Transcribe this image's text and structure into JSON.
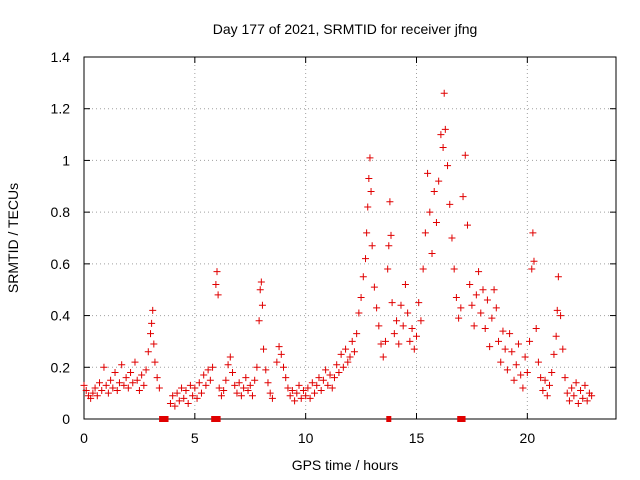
{
  "chart_data": {
    "type": "scatter",
    "title": "Day 177 of 2021, SRMTID for receiver jfng",
    "xlabel": "GPS time / hours",
    "ylabel": "SRMTID / TECUs",
    "xlim": [
      0,
      24
    ],
    "ylim": [
      0,
      1.4
    ],
    "xticks": [
      0,
      5,
      10,
      15,
      20
    ],
    "xtick_labels": [
      "0",
      "5",
      "10",
      "15",
      "20"
    ],
    "yticks": [
      0,
      0.2,
      0.4,
      0.6,
      0.8,
      1,
      1.2,
      1.4
    ],
    "ytick_labels": [
      "0",
      "0.2",
      "0.4",
      "0.6",
      "0.8",
      "1",
      "1.2",
      "1.4"
    ],
    "grid": true,
    "marker": "+",
    "series_color": "#e00000",
    "series": [
      {
        "name": "SRMTID",
        "points": [
          [
            0.0,
            0.13
          ],
          [
            0.1,
            0.11
          ],
          [
            0.2,
            0.09
          ],
          [
            0.3,
            0.08
          ],
          [
            0.4,
            0.1
          ],
          [
            0.5,
            0.12
          ],
          [
            0.6,
            0.09
          ],
          [
            0.7,
            0.14
          ],
          [
            0.8,
            0.11
          ],
          [
            0.9,
            0.2
          ],
          [
            1.0,
            0.13
          ],
          [
            1.1,
            0.1
          ],
          [
            1.2,
            0.15
          ],
          [
            1.3,
            0.12
          ],
          [
            1.4,
            0.18
          ],
          [
            1.5,
            0.11
          ],
          [
            1.6,
            0.14
          ],
          [
            1.7,
            0.21
          ],
          [
            1.8,
            0.13
          ],
          [
            1.9,
            0.16
          ],
          [
            2.0,
            0.12
          ],
          [
            2.1,
            0.18
          ],
          [
            2.2,
            0.14
          ],
          [
            2.3,
            0.22
          ],
          [
            2.4,
            0.15
          ],
          [
            2.5,
            0.11
          ],
          [
            2.6,
            0.17
          ],
          [
            2.7,
            0.13
          ],
          [
            2.8,
            0.19
          ],
          [
            2.9,
            0.26
          ],
          [
            3.0,
            0.33
          ],
          [
            3.05,
            0.37
          ],
          [
            3.1,
            0.42
          ],
          [
            3.15,
            0.29
          ],
          [
            3.2,
            0.22
          ],
          [
            3.3,
            0.16
          ],
          [
            3.4,
            0.12
          ],
          [
            3.9,
            0.06
          ],
          [
            4.0,
            0.09
          ],
          [
            4.1,
            0.05
          ],
          [
            4.2,
            0.1
          ],
          [
            4.3,
            0.07
          ],
          [
            4.4,
            0.12
          ],
          [
            4.5,
            0.08
          ],
          [
            4.6,
            0.11
          ],
          [
            4.7,
            0.06
          ],
          [
            4.8,
            0.13
          ],
          [
            4.9,
            0.09
          ],
          [
            5.0,
            0.12
          ],
          [
            5.1,
            0.08
          ],
          [
            5.2,
            0.14
          ],
          [
            5.3,
            0.1
          ],
          [
            5.4,
            0.17
          ],
          [
            5.5,
            0.13
          ],
          [
            5.6,
            0.19
          ],
          [
            5.7,
            0.15
          ],
          [
            5.8,
            0.2
          ],
          [
            5.95,
            0.52
          ],
          [
            6.0,
            0.57
          ],
          [
            6.05,
            0.48
          ],
          [
            6.1,
            0.12
          ],
          [
            6.2,
            0.09
          ],
          [
            6.3,
            0.11
          ],
          [
            6.4,
            0.15
          ],
          [
            6.5,
            0.21
          ],
          [
            6.6,
            0.24
          ],
          [
            6.7,
            0.18
          ],
          [
            6.8,
            0.13
          ],
          [
            6.9,
            0.1
          ],
          [
            7.0,
            0.14
          ],
          [
            7.1,
            0.09
          ],
          [
            7.2,
            0.12
          ],
          [
            7.3,
            0.16
          ],
          [
            7.4,
            0.11
          ],
          [
            7.5,
            0.13
          ],
          [
            7.6,
            0.09
          ],
          [
            7.7,
            0.15
          ],
          [
            7.8,
            0.2
          ],
          [
            7.9,
            0.38
          ],
          [
            7.95,
            0.5
          ],
          [
            8.0,
            0.53
          ],
          [
            8.05,
            0.44
          ],
          [
            8.1,
            0.27
          ],
          [
            8.2,
            0.19
          ],
          [
            8.3,
            0.14
          ],
          [
            8.4,
            0.1
          ],
          [
            8.5,
            0.08
          ],
          [
            8.7,
            0.22
          ],
          [
            8.8,
            0.28
          ],
          [
            8.9,
            0.25
          ],
          [
            9.0,
            0.2
          ],
          [
            9.1,
            0.16
          ],
          [
            9.2,
            0.12
          ],
          [
            9.3,
            0.09
          ],
          [
            9.4,
            0.11
          ],
          [
            9.5,
            0.07
          ],
          [
            9.6,
            0.1
          ],
          [
            9.7,
            0.13
          ],
          [
            9.8,
            0.08
          ],
          [
            9.9,
            0.11
          ],
          [
            10.0,
            0.09
          ],
          [
            10.1,
            0.12
          ],
          [
            10.2,
            0.08
          ],
          [
            10.3,
            0.14
          ],
          [
            10.4,
            0.1
          ],
          [
            10.5,
            0.13
          ],
          [
            10.6,
            0.16
          ],
          [
            10.7,
            0.11
          ],
          [
            10.8,
            0.15
          ],
          [
            10.9,
            0.19
          ],
          [
            11.0,
            0.13
          ],
          [
            11.1,
            0.17
          ],
          [
            11.2,
            0.12
          ],
          [
            11.3,
            0.16
          ],
          [
            11.4,
            0.21
          ],
          [
            11.5,
            0.18
          ],
          [
            11.6,
            0.25
          ],
          [
            11.7,
            0.2
          ],
          [
            11.8,
            0.27
          ],
          [
            11.9,
            0.22
          ],
          [
            12.0,
            0.24
          ],
          [
            12.1,
            0.3
          ],
          [
            12.2,
            0.26
          ],
          [
            12.3,
            0.33
          ],
          [
            12.4,
            0.41
          ],
          [
            12.5,
            0.47
          ],
          [
            12.6,
            0.55
          ],
          [
            12.7,
            0.62
          ],
          [
            12.75,
            0.72
          ],
          [
            12.8,
            0.82
          ],
          [
            12.85,
            0.93
          ],
          [
            12.9,
            1.01
          ],
          [
            12.95,
            0.88
          ],
          [
            13.0,
            0.67
          ],
          [
            13.1,
            0.51
          ],
          [
            13.2,
            0.43
          ],
          [
            13.3,
            0.36
          ],
          [
            13.4,
            0.29
          ],
          [
            13.5,
            0.24
          ],
          [
            13.6,
            0.3
          ],
          [
            13.7,
            0.58
          ],
          [
            13.75,
            0.67
          ],
          [
            13.8,
            0.84
          ],
          [
            13.85,
            0.71
          ],
          [
            13.9,
            0.45
          ],
          [
            14.0,
            0.33
          ],
          [
            14.1,
            0.38
          ],
          [
            14.2,
            0.29
          ],
          [
            14.3,
            0.44
          ],
          [
            14.4,
            0.36
          ],
          [
            14.5,
            0.52
          ],
          [
            14.6,
            0.41
          ],
          [
            14.7,
            0.3
          ],
          [
            14.8,
            0.35
          ],
          [
            14.9,
            0.27
          ],
          [
            15.0,
            0.32
          ],
          [
            15.1,
            0.45
          ],
          [
            15.2,
            0.38
          ],
          [
            15.3,
            0.58
          ],
          [
            15.4,
            0.72
          ],
          [
            15.5,
            0.95
          ],
          [
            15.6,
            0.8
          ],
          [
            15.7,
            0.64
          ],
          [
            15.8,
            0.88
          ],
          [
            15.9,
            0.76
          ],
          [
            16.0,
            0.92
          ],
          [
            16.1,
            1.1
          ],
          [
            16.2,
            1.05
          ],
          [
            16.25,
            1.26
          ],
          [
            16.3,
            1.12
          ],
          [
            16.4,
            0.98
          ],
          [
            16.5,
            0.83
          ],
          [
            16.6,
            0.7
          ],
          [
            16.7,
            0.58
          ],
          [
            16.8,
            0.47
          ],
          [
            16.9,
            0.39
          ],
          [
            17.0,
            0.43
          ],
          [
            17.1,
            0.86
          ],
          [
            17.2,
            1.02
          ],
          [
            17.3,
            0.75
          ],
          [
            17.4,
            0.52
          ],
          [
            17.5,
            0.44
          ],
          [
            17.6,
            0.36
          ],
          [
            17.7,
            0.48
          ],
          [
            17.8,
            0.57
          ],
          [
            17.9,
            0.41
          ],
          [
            18.0,
            0.5
          ],
          [
            18.1,
            0.35
          ],
          [
            18.2,
            0.46
          ],
          [
            18.3,
            0.28
          ],
          [
            18.4,
            0.39
          ],
          [
            18.5,
            0.5
          ],
          [
            18.6,
            0.43
          ],
          [
            18.7,
            0.3
          ],
          [
            18.8,
            0.22
          ],
          [
            18.9,
            0.34
          ],
          [
            19.0,
            0.27
          ],
          [
            19.1,
            0.19
          ],
          [
            19.2,
            0.33
          ],
          [
            19.3,
            0.26
          ],
          [
            19.4,
            0.15
          ],
          [
            19.5,
            0.21
          ],
          [
            19.6,
            0.29
          ],
          [
            19.7,
            0.17
          ],
          [
            19.8,
            0.12
          ],
          [
            19.9,
            0.24
          ],
          [
            20.0,
            0.18
          ],
          [
            20.1,
            0.3
          ],
          [
            20.2,
            0.58
          ],
          [
            20.25,
            0.72
          ],
          [
            20.3,
            0.61
          ],
          [
            20.4,
            0.35
          ],
          [
            20.5,
            0.22
          ],
          [
            20.6,
            0.16
          ],
          [
            20.7,
            0.11
          ],
          [
            20.8,
            0.15
          ],
          [
            20.9,
            0.09
          ],
          [
            21.0,
            0.13
          ],
          [
            21.1,
            0.18
          ],
          [
            21.2,
            0.25
          ],
          [
            21.3,
            0.32
          ],
          [
            21.35,
            0.42
          ],
          [
            21.4,
            0.55
          ],
          [
            21.5,
            0.4
          ],
          [
            21.6,
            0.27
          ],
          [
            21.7,
            0.16
          ],
          [
            21.8,
            0.1
          ],
          [
            21.9,
            0.07
          ],
          [
            22.0,
            0.12
          ],
          [
            22.1,
            0.09
          ],
          [
            22.2,
            0.14
          ],
          [
            22.3,
            0.06
          ],
          [
            22.4,
            0.11
          ],
          [
            22.5,
            0.08
          ],
          [
            22.6,
            0.13
          ],
          [
            22.7,
            0.07
          ],
          [
            22.8,
            0.1
          ],
          [
            22.9,
            0.09
          ]
        ]
      }
    ],
    "gap_markers_x": [
      3.5,
      3.6,
      3.7,
      5.85,
      6.05,
      13.75,
      16.95,
      17.1
    ]
  }
}
